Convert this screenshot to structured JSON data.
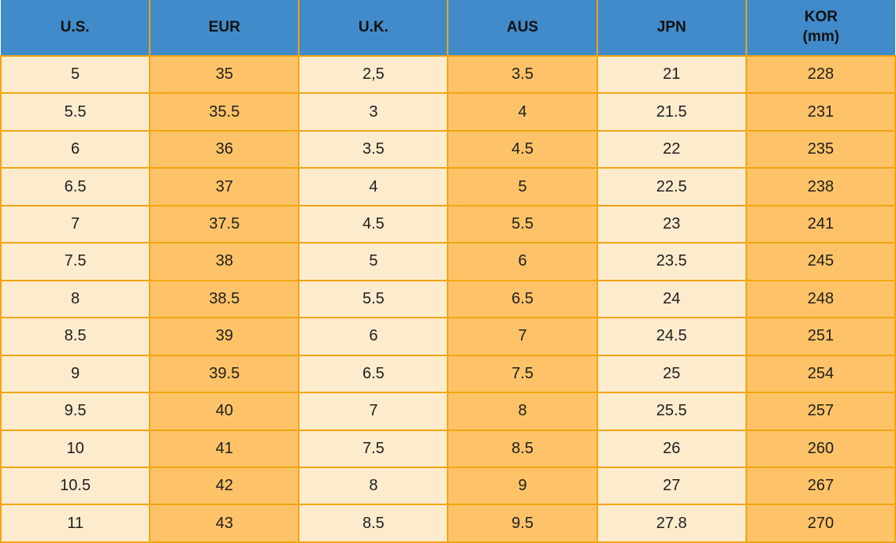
{
  "colors": {
    "header_bg": "#428BCA",
    "header_text": "#111111",
    "cell_cream": "#FDEBCE",
    "cell_orange": "#FEC368",
    "border": "#F2A50F",
    "cell_text": "#1E1E1E"
  },
  "chart_data": {
    "type": "table",
    "columns": [
      {
        "label": "U.S."
      },
      {
        "label": "EUR"
      },
      {
        "label": "U.K."
      },
      {
        "label": "AUS"
      },
      {
        "label": "JPN"
      },
      {
        "label": "KOR",
        "label2": "(mm)"
      }
    ],
    "rows": [
      [
        "5",
        "35",
        "2,5",
        "3.5",
        "21",
        "228"
      ],
      [
        "5.5",
        "35.5",
        "3",
        "4",
        "21.5",
        "231"
      ],
      [
        "6",
        "36",
        "3.5",
        "4.5",
        "22",
        "235"
      ],
      [
        "6.5",
        "37",
        "4",
        "5",
        "22.5",
        "238"
      ],
      [
        "7",
        "37.5",
        "4.5",
        "5.5",
        "23",
        "241"
      ],
      [
        "7.5",
        "38",
        "5",
        "6",
        "23.5",
        "245"
      ],
      [
        "8",
        "38.5",
        "5.5",
        "6.5",
        "24",
        "248"
      ],
      [
        "8.5",
        "39",
        "6",
        "7",
        "24.5",
        "251"
      ],
      [
        "9",
        "39.5",
        "6.5",
        "7.5",
        "25",
        "254"
      ],
      [
        "9.5",
        "40",
        "7",
        "8",
        "25.5",
        "257"
      ],
      [
        "10",
        "41",
        "7.5",
        "8.5",
        "26",
        "260"
      ],
      [
        "10.5",
        "42",
        "8",
        "9",
        "27",
        "267"
      ],
      [
        "11",
        "43",
        "8.5",
        "9.5",
        "27.8",
        "270"
      ]
    ]
  }
}
